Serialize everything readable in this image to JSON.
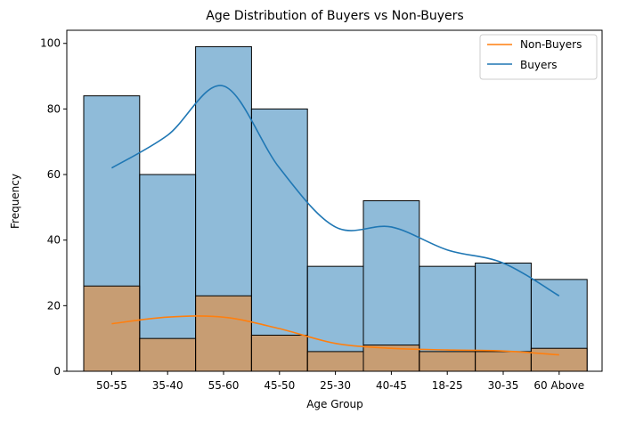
{
  "chart_data": {
    "type": "bar",
    "title": "Age Distribution of Buyers vs Non-Buyers",
    "xlabel": "Age Group",
    "ylabel": "Frequency",
    "ylim": [
      0,
      104
    ],
    "yticks": [
      0,
      20,
      40,
      60,
      80,
      100
    ],
    "categories": [
      "50-55",
      "35-40",
      "55-60",
      "45-50",
      "25-30",
      "40-45",
      "18-25",
      "30-35",
      "60 Above"
    ],
    "series": [
      {
        "name": "Buyers",
        "values": [
          84,
          60,
          99,
          80,
          32,
          52,
          32,
          33,
          28
        ],
        "color": "#1f77b4"
      },
      {
        "name": "Non-Buyers",
        "values": [
          26,
          10,
          23,
          11,
          6,
          8,
          6,
          6,
          7
        ],
        "color": "#ff7f0e"
      }
    ],
    "kde": {
      "Buyers": [
        62,
        72,
        87,
        62,
        44,
        44,
        37,
        33,
        23
      ],
      "Non-Buyers": [
        14.5,
        16.5,
        16.5,
        13,
        8.5,
        7,
        6.5,
        6.2,
        5
      ]
    },
    "legend": {
      "position": "top-right",
      "entries": [
        "Non-Buyers",
        "Buyers"
      ]
    },
    "grid": false
  }
}
